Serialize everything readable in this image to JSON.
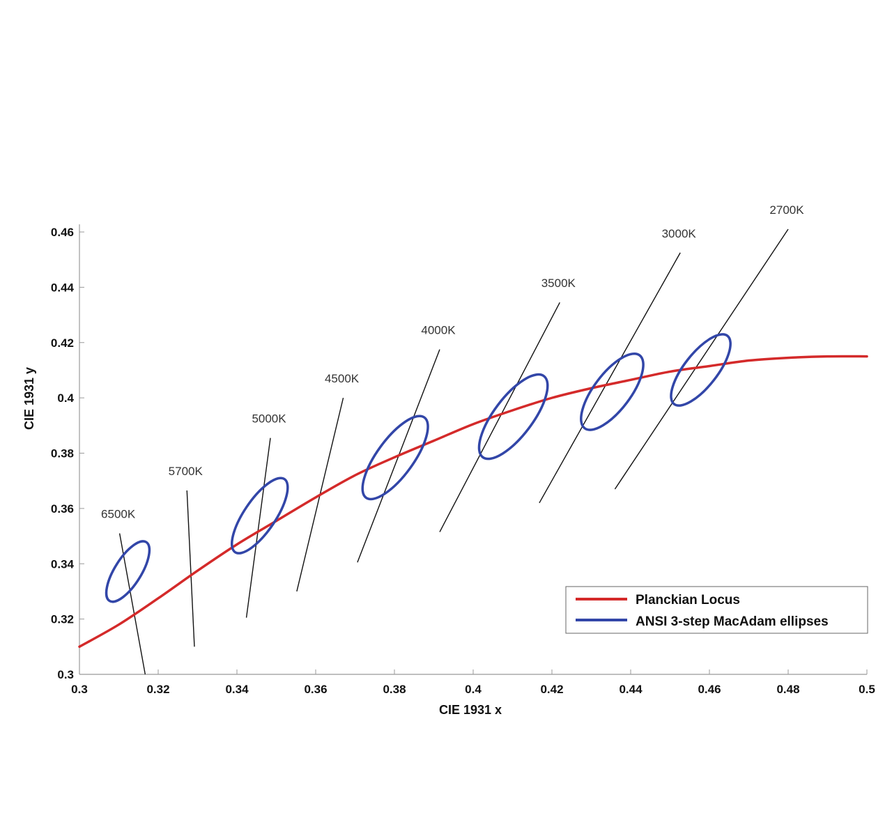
{
  "chart_data": {
    "type": "line",
    "title": "",
    "xlabel": "CIE 1931 x",
    "ylabel": "CIE 1931 y",
    "xlim": [
      0.3,
      0.5
    ],
    "ylim": [
      0.3,
      0.46
    ],
    "x_ticks": [
      "0.3",
      "0.32",
      "0.34",
      "0.36",
      "0.38",
      "0.4",
      "0.42",
      "0.44",
      "0.46",
      "0.48",
      "0.5"
    ],
    "y_ticks": [
      "0.3",
      "0.32",
      "0.34",
      "0.36",
      "0.38",
      "0.4",
      "0.42",
      "0.44",
      "0.46"
    ],
    "grid": false,
    "legend_position": "bottom-right",
    "colors": {
      "locus": "#d42a2a",
      "ellipse": "#3246a8",
      "iso_line": "#111111"
    },
    "series": [
      {
        "name": "Planckian Locus",
        "x": [
          0.3,
          0.31,
          0.32,
          0.33,
          0.34,
          0.35,
          0.36,
          0.37,
          0.38,
          0.39,
          0.4,
          0.41,
          0.42,
          0.43,
          0.44,
          0.45,
          0.46,
          0.47,
          0.48,
          0.49,
          0.5
        ],
        "y": [
          0.31,
          0.318,
          0.3275,
          0.3375,
          0.347,
          0.3555,
          0.364,
          0.372,
          0.3785,
          0.3845,
          0.3905,
          0.3955,
          0.4,
          0.4035,
          0.4065,
          0.4095,
          0.4115,
          0.4135,
          0.4145,
          0.415,
          0.415
        ]
      },
      {
        "name": "ANSI 3-step MacAdam ellipses",
        "ellipses": [
          {
            "cct": "6500K",
            "cx": 0.3123,
            "cy": 0.3372,
            "a": 0.0048,
            "b": 0.0088,
            "tilt_deg": 58
          },
          {
            "cct": "5000K",
            "cx": 0.3458,
            "cy": 0.3574,
            "a": 0.0057,
            "b": 0.0112,
            "tilt_deg": 56
          },
          {
            "cct": "4000K",
            "cx": 0.3802,
            "cy": 0.3784,
            "a": 0.0066,
            "b": 0.0126,
            "tilt_deg": 54
          },
          {
            "cct": "3500K",
            "cx": 0.4102,
            "cy": 0.3932,
            "a": 0.007,
            "b": 0.0129,
            "tilt_deg": 53
          },
          {
            "cct": "3000K",
            "cx": 0.4353,
            "cy": 0.4022,
            "a": 0.0066,
            "b": 0.0116,
            "tilt_deg": 53
          },
          {
            "cct": "2700K",
            "cx": 0.4578,
            "cy": 0.4101,
            "a": 0.006,
            "b": 0.011,
            "tilt_deg": 52
          }
        ]
      }
    ],
    "isotherms": [
      {
        "label": "6500K",
        "x": [
          0.3102,
          0.3167
        ],
        "y": [
          0.351,
          0.3
        ]
      },
      {
        "label": "5700K",
        "x": [
          0.3273,
          0.3292
        ],
        "y": [
          0.3665,
          0.31
        ]
      },
      {
        "label": "5000K",
        "x": [
          0.3485,
          0.3424
        ],
        "y": [
          0.3855,
          0.3205
        ]
      },
      {
        "label": "4500K",
        "x": [
          0.367,
          0.3552
        ],
        "y": [
          0.4,
          0.33
        ]
      },
      {
        "label": "4000K",
        "x": [
          0.3915,
          0.3706
        ],
        "y": [
          0.4175,
          0.3405
        ]
      },
      {
        "label": "3500K",
        "x": [
          0.422,
          0.3915
        ],
        "y": [
          0.4345,
          0.3515
        ]
      },
      {
        "label": "3000K",
        "x": [
          0.4526,
          0.4168
        ],
        "y": [
          0.4525,
          0.362
        ]
      },
      {
        "label": "2700K",
        "x": [
          0.48,
          0.436
        ],
        "y": [
          0.461,
          0.367
        ]
      }
    ]
  },
  "legend": {
    "items": [
      {
        "label": "Planckian Locus",
        "color": "#d42a2a"
      },
      {
        "label": "ANSI 3-step MacAdam ellipses",
        "color": "#3246a8"
      }
    ]
  }
}
